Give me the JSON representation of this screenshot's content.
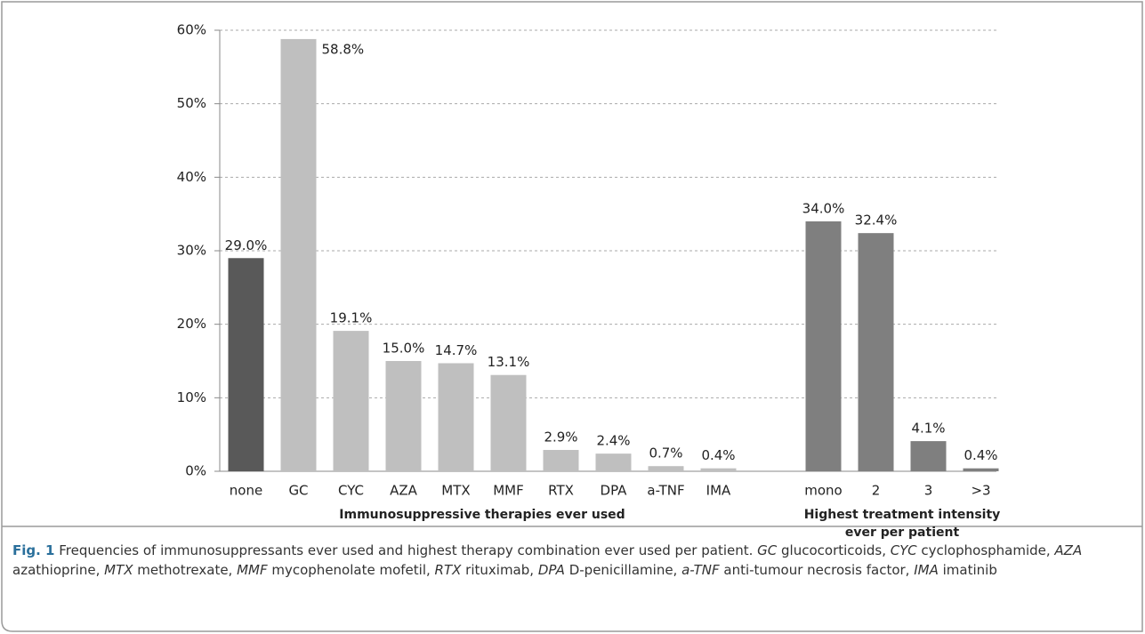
{
  "chart_data": {
    "type": "bar",
    "categories": [
      "none",
      "GC",
      "CYC",
      "AZA",
      "MTX",
      "MMF",
      "RTX",
      "DPA",
      "a-TNF",
      "IMA",
      null,
      "mono",
      "2",
      "3",
      ">3"
    ],
    "values": [
      29.0,
      58.8,
      19.1,
      15.0,
      14.7,
      13.1,
      2.9,
      2.4,
      0.7,
      0.4,
      null,
      34.0,
      32.4,
      4.1,
      0.4
    ],
    "value_labels": [
      "29.0%",
      "58.8%",
      "19.1%",
      "15.0%",
      "14.7%",
      "13.1%",
      "2.9%",
      "2.4%",
      "0.7%",
      "0.4%",
      null,
      "34.0%",
      "32.4%",
      "4.1%",
      "0.4%"
    ],
    "colors": [
      "#595959",
      "#bfbfbf",
      "#bfbfbf",
      "#bfbfbf",
      "#bfbfbf",
      "#bfbfbf",
      "#bfbfbf",
      "#bfbfbf",
      "#bfbfbf",
      "#bfbfbf",
      null,
      "#7f7f7f",
      "#7f7f7f",
      "#7f7f7f",
      "#7f7f7f"
    ],
    "group_labels": [
      [
        "Immunosuppressive  therapies ever used"
      ],
      [
        "Highest treatment intensity",
        "ever per patient"
      ]
    ],
    "ylim": [
      0,
      60
    ],
    "yticks": [
      {
        "value": 0,
        "label": "0%"
      },
      {
        "value": 10,
        "label": "10%"
      },
      {
        "value": 20,
        "label": "20%"
      },
      {
        "value": 30,
        "label": "30%"
      },
      {
        "value": 40,
        "label": "40%"
      },
      {
        "value": 50,
        "label": "50%"
      },
      {
        "value": 60,
        "label": "60%"
      }
    ],
    "grid": true
  },
  "caption": [
    {
      "text": "Fig. 1",
      "bold": true
    },
    {
      "text": " Frequencies of immunosuppressants ever used and highest therapy combination ever used per patient. "
    },
    {
      "text": "GC",
      "italic": true
    },
    {
      "text": " glucocorticoids, "
    },
    {
      "text": "CYC",
      "italic": true
    },
    {
      "text": " cyclophosphamide, "
    },
    {
      "text": "AZA",
      "italic": true
    },
    {
      "text": " azathioprine, "
    },
    {
      "text": "MTX",
      "italic": true
    },
    {
      "text": " methotrexate, "
    },
    {
      "text": "MMF",
      "italic": true
    },
    {
      "text": " mycophenolate mofetil, "
    },
    {
      "text": "RTX",
      "italic": true
    },
    {
      "text": " rituximab, "
    },
    {
      "text": "DPA",
      "italic": true
    },
    {
      "text": " D-penicillamine, "
    },
    {
      "text": "a-TNF",
      "italic": true
    },
    {
      "text": " anti-tumour necrosis factor, "
    },
    {
      "text": "IMA",
      "italic": true
    },
    {
      "text": " imatinib"
    }
  ]
}
